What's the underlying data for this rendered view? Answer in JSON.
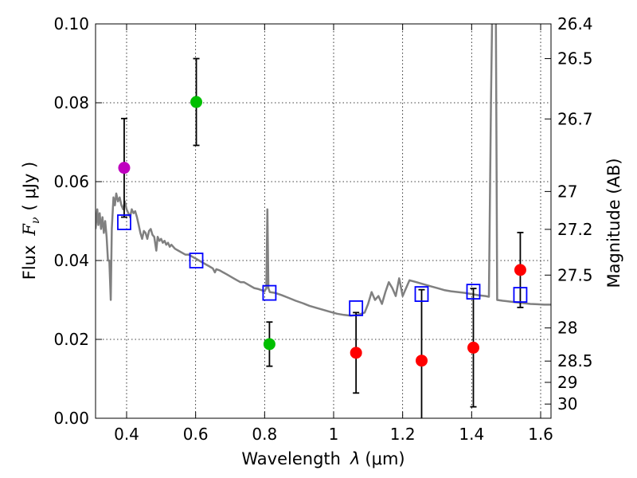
{
  "chart_data": {
    "type": "scatter",
    "xlabel": "Wavelength",
    "xlabel_symbol": "λ",
    "xlabel_unit": "(μm)",
    "ylabel": "Flux",
    "ylabel_symbol": "F",
    "ylabel_subscript": "ν",
    "ylabel_unit": "( μJy )",
    "y2label": "Magnitude (AB)",
    "xlim": [
      0.31,
      1.63
    ],
    "ylim": [
      0.0,
      0.1
    ],
    "grid": true,
    "x_ticks": [
      {
        "value": 0.4,
        "label": "0.4"
      },
      {
        "value": 0.6,
        "label": "0.6"
      },
      {
        "value": 0.8,
        "label": "0.8"
      },
      {
        "value": 1.0,
        "label": "1"
      },
      {
        "value": 1.2,
        "label": "1.2"
      },
      {
        "value": 1.4,
        "label": "1.4"
      },
      {
        "value": 1.6,
        "label": "1.6"
      }
    ],
    "y_ticks": [
      {
        "value": 0.0,
        "label": "0.00"
      },
      {
        "value": 0.02,
        "label": "0.02"
      },
      {
        "value": 0.04,
        "label": "0.04"
      },
      {
        "value": 0.06,
        "label": "0.06"
      },
      {
        "value": 0.08,
        "label": "0.08"
      },
      {
        "value": 0.1,
        "label": "0.10"
      }
    ],
    "magnitude_ticks": [
      {
        "flux": 0.1,
        "label": "26.4"
      },
      {
        "flux": 0.0912,
        "label": "26.5"
      },
      {
        "flux": 0.0759,
        "label": "26.7"
      },
      {
        "flux": 0.0575,
        "label": "27"
      },
      {
        "flux": 0.0479,
        "label": "27.2"
      },
      {
        "flux": 0.0363,
        "label": "27.5"
      },
      {
        "flux": 0.0229,
        "label": "28"
      },
      {
        "flux": 0.0145,
        "label": "28.5"
      },
      {
        "flux": 0.0091,
        "label": "29"
      },
      {
        "flux": 0.0036,
        "label": "30"
      }
    ],
    "observed_points": [
      {
        "x": 0.393,
        "y": 0.0635,
        "yerr": 0.0125,
        "color": "#bf00bf"
      },
      {
        "x": 0.602,
        "y": 0.0802,
        "yerr": 0.011,
        "color": "#00bf00"
      },
      {
        "x": 0.814,
        "y": 0.0188,
        "yerr": 0.0056,
        "color": "#00bf00"
      },
      {
        "x": 1.065,
        "y": 0.0166,
        "yerr": 0.0102,
        "color": "#ff0000"
      },
      {
        "x": 1.255,
        "y": 0.0146,
        "yerr": 0.018,
        "color": "#ff0000"
      },
      {
        "x": 1.405,
        "y": 0.0179,
        "yerr": 0.015,
        "color": "#ff0000"
      },
      {
        "x": 1.541,
        "y": 0.0376,
        "yerr": 0.0095,
        "color": "#ff0000"
      }
    ],
    "model_photometry": [
      {
        "x": 0.393,
        "y": 0.0497,
        "color": "#0000ff"
      },
      {
        "x": 0.602,
        "y": 0.04,
        "color": "#0000ff"
      },
      {
        "x": 0.814,
        "y": 0.0318,
        "color": "#0000ff"
      },
      {
        "x": 1.065,
        "y": 0.0279,
        "color": "#0000ff"
      },
      {
        "x": 1.255,
        "y": 0.0315,
        "color": "#0000ff"
      },
      {
        "x": 1.405,
        "y": 0.0321,
        "color": "#0000ff"
      },
      {
        "x": 1.541,
        "y": 0.0313,
        "color": "#0000ff"
      }
    ],
    "model_spectrum": {
      "color": "#808080",
      "points": [
        [
          0.31,
          0.048
        ],
        [
          0.315,
          0.053
        ],
        [
          0.318,
          0.049
        ],
        [
          0.322,
          0.052
        ],
        [
          0.326,
          0.048
        ],
        [
          0.33,
          0.051
        ],
        [
          0.334,
          0.047
        ],
        [
          0.338,
          0.05
        ],
        [
          0.342,
          0.046
        ],
        [
          0.346,
          0.04
        ],
        [
          0.35,
          0.04
        ],
        [
          0.354,
          0.03
        ],
        [
          0.357,
          0.048
        ],
        [
          0.362,
          0.056
        ],
        [
          0.366,
          0.054
        ],
        [
          0.37,
          0.057
        ],
        [
          0.375,
          0.055
        ],
        [
          0.38,
          0.056
        ],
        [
          0.385,
          0.054
        ],
        [
          0.39,
          0.053
        ],
        [
          0.395,
          0.055
        ],
        [
          0.4,
          0.053
        ],
        [
          0.405,
          0.052
        ],
        [
          0.41,
          0.051
        ],
        [
          0.415,
          0.053
        ],
        [
          0.42,
          0.052
        ],
        [
          0.425,
          0.0525
        ],
        [
          0.43,
          0.051
        ],
        [
          0.435,
          0.049
        ],
        [
          0.44,
          0.047
        ],
        [
          0.445,
          0.0455
        ],
        [
          0.45,
          0.0475
        ],
        [
          0.455,
          0.047
        ],
        [
          0.46,
          0.0455
        ],
        [
          0.465,
          0.0475
        ],
        [
          0.47,
          0.048
        ],
        [
          0.475,
          0.0465
        ],
        [
          0.48,
          0.046
        ],
        [
          0.486,
          0.0425
        ],
        [
          0.49,
          0.046
        ],
        [
          0.495,
          0.045
        ],
        [
          0.5,
          0.0455
        ],
        [
          0.505,
          0.0445
        ],
        [
          0.51,
          0.045
        ],
        [
          0.515,
          0.044
        ],
        [
          0.52,
          0.0445
        ],
        [
          0.525,
          0.0435
        ],
        [
          0.53,
          0.044
        ],
        [
          0.54,
          0.043
        ],
        [
          0.55,
          0.0425
        ],
        [
          0.56,
          0.042
        ],
        [
          0.57,
          0.0415
        ],
        [
          0.58,
          0.0415
        ],
        [
          0.59,
          0.041
        ],
        [
          0.6,
          0.0405
        ],
        [
          0.61,
          0.04
        ],
        [
          0.62,
          0.0395
        ],
        [
          0.63,
          0.039
        ],
        [
          0.64,
          0.0385
        ],
        [
          0.65,
          0.038
        ],
        [
          0.656,
          0.037
        ],
        [
          0.66,
          0.0378
        ],
        [
          0.67,
          0.0375
        ],
        [
          0.68,
          0.037
        ],
        [
          0.69,
          0.0365
        ],
        [
          0.7,
          0.036
        ],
        [
          0.71,
          0.0355
        ],
        [
          0.72,
          0.035
        ],
        [
          0.73,
          0.0345
        ],
        [
          0.74,
          0.0345
        ],
        [
          0.75,
          0.034
        ],
        [
          0.76,
          0.0335
        ],
        [
          0.77,
          0.033
        ],
        [
          0.78,
          0.0328
        ],
        [
          0.79,
          0.0325
        ],
        [
          0.8,
          0.0322
        ],
        [
          0.805,
          0.033
        ],
        [
          0.808,
          0.053
        ],
        [
          0.811,
          0.033
        ],
        [
          0.815,
          0.032
        ],
        [
          0.83,
          0.0318
        ],
        [
          0.85,
          0.0312
        ],
        [
          0.87,
          0.0305
        ],
        [
          0.89,
          0.0298
        ],
        [
          0.91,
          0.0292
        ],
        [
          0.93,
          0.0285
        ],
        [
          0.95,
          0.028
        ],
        [
          0.97,
          0.0275
        ],
        [
          0.99,
          0.027
        ],
        [
          1.01,
          0.0265
        ],
        [
          1.03,
          0.0262
        ],
        [
          1.05,
          0.026
        ],
        [
          1.07,
          0.0262
        ],
        [
          1.09,
          0.0268
        ],
        [
          1.1,
          0.029
        ],
        [
          1.11,
          0.032
        ],
        [
          1.12,
          0.03
        ],
        [
          1.13,
          0.031
        ],
        [
          1.14,
          0.029
        ],
        [
          1.15,
          0.032
        ],
        [
          1.16,
          0.0345
        ],
        [
          1.17,
          0.033
        ],
        [
          1.18,
          0.031
        ],
        [
          1.19,
          0.0355
        ],
        [
          1.2,
          0.031
        ],
        [
          1.21,
          0.033
        ],
        [
          1.22,
          0.035
        ],
        [
          1.24,
          0.0345
        ],
        [
          1.26,
          0.034
        ],
        [
          1.28,
          0.0335
        ],
        [
          1.3,
          0.033
        ],
        [
          1.32,
          0.0325
        ],
        [
          1.34,
          0.0322
        ],
        [
          1.36,
          0.032
        ],
        [
          1.38,
          0.0318
        ],
        [
          1.4,
          0.0315
        ],
        [
          1.42,
          0.0312
        ],
        [
          1.44,
          0.031
        ],
        [
          1.45,
          0.0308
        ],
        [
          1.456,
          0.08
        ],
        [
          1.46,
          0.105
        ],
        [
          1.47,
          0.105
        ],
        [
          1.474,
          0.03
        ],
        [
          1.49,
          0.0298
        ],
        [
          1.51,
          0.0296
        ],
        [
          1.53,
          0.0294
        ],
        [
          1.55,
          0.0292
        ],
        [
          1.57,
          0.029
        ],
        [
          1.59,
          0.0289
        ],
        [
          1.61,
          0.0288
        ],
        [
          1.63,
          0.0288
        ]
      ]
    }
  }
}
